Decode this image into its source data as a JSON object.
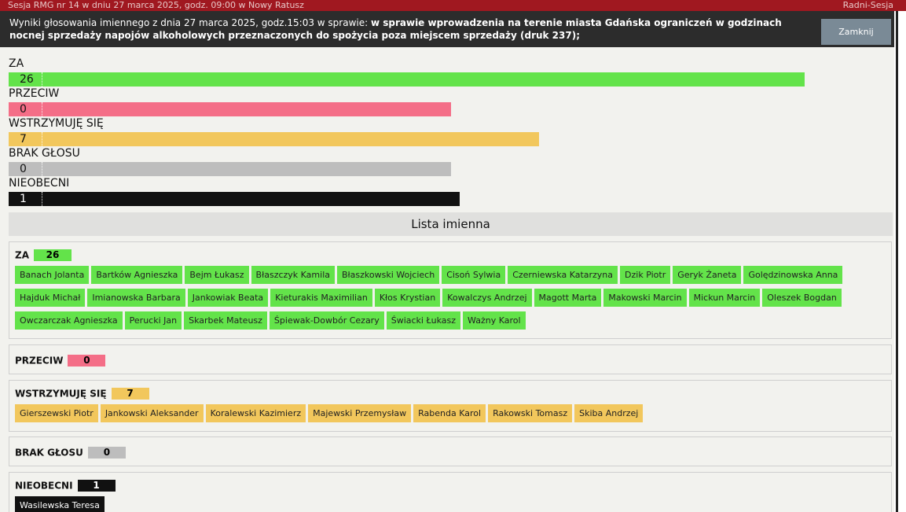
{
  "window": {
    "title_left": "Sesja RMG nr 14 w dniu 27 marca 2025, godz. 09:00 w Nowy Ratusz",
    "title_right": "Radni-Sesja"
  },
  "header": {
    "prefix": "Wyniki głosowania imiennego z dnia 27 marca 2025, godz.15:03 w sprawie: ",
    "subject": "w sprawie wprowadzenia na terenie miasta Gdańska ograniczeń w godzinach nocnej sprzedaży napojów alkoholowych przeznaczonych do spożycia poza miejscem sprzedaży (druk 237);",
    "close_label": "Zamknij"
  },
  "colors": {
    "za": "#63e34a",
    "przeciw": "#f46e87",
    "wstrzymuje": "#f2c75c",
    "brak": "#bdbdbd",
    "nieobecni": "#111111"
  },
  "summary": [
    {
      "label": "ZA",
      "count": "26",
      "fill_fraction": 0.9
    },
    {
      "label": "PRZECIW",
      "count": "0",
      "fill_fraction": 0.5
    },
    {
      "label": "WSTRZYMUJĘ SIĘ",
      "count": "7",
      "fill_fraction": 0.6
    },
    {
      "label": "BRAK GŁOSU",
      "count": "0",
      "fill_fraction": 0.5
    },
    {
      "label": "NIEOBECNI",
      "count": "1",
      "fill_fraction": 0.51
    }
  ],
  "list_title": "Lista imienna",
  "groups": {
    "za": {
      "label": "ZA",
      "count": "26",
      "names": [
        "Banach Jolanta",
        "Bartków Agnieszka",
        "Bejm Łukasz",
        "Błaszczyk Kamila",
        "Błaszkowski Wojciech",
        "Cisoń Sylwia",
        "Czerniewska Katarzyna",
        "Dzik Piotr",
        "Geryk Żaneta",
        "Golędzinowska Anna",
        "Hajduk Michał",
        "Imianowska Barbara",
        "Jankowiak Beata",
        "Kieturakis Maximilian",
        "Kłos Krystian",
        "Kowalczys Andrzej",
        "Magott Marta",
        "Makowski Marcin",
        "Mickun Marcin",
        "Oleszek Bogdan",
        "Owczarczak Agnieszka",
        "Perucki Jan",
        "Skarbek Mateusz",
        "Śpiewak-Dowbór Cezary",
        "Świacki Łukasz",
        "Ważny Karol"
      ]
    },
    "przeciw": {
      "label": "PRZECIW",
      "count": "0",
      "names": []
    },
    "wstrzymuje": {
      "label": "WSTRZYMUJĘ SIĘ",
      "count": "7",
      "names": [
        "Gierszewski Piotr",
        "Jankowski Aleksander",
        "Koralewski Kazimierz",
        "Majewski Przemysław",
        "Rabenda Karol",
        "Rakowski Tomasz",
        "Skiba Andrzej"
      ]
    },
    "brak": {
      "label": "BRAK GŁOSU",
      "count": "0",
      "names": []
    },
    "nieobecni": {
      "label": "NIEOBECNI",
      "count": "1",
      "names": [
        "Wasilewska Teresa"
      ]
    }
  }
}
